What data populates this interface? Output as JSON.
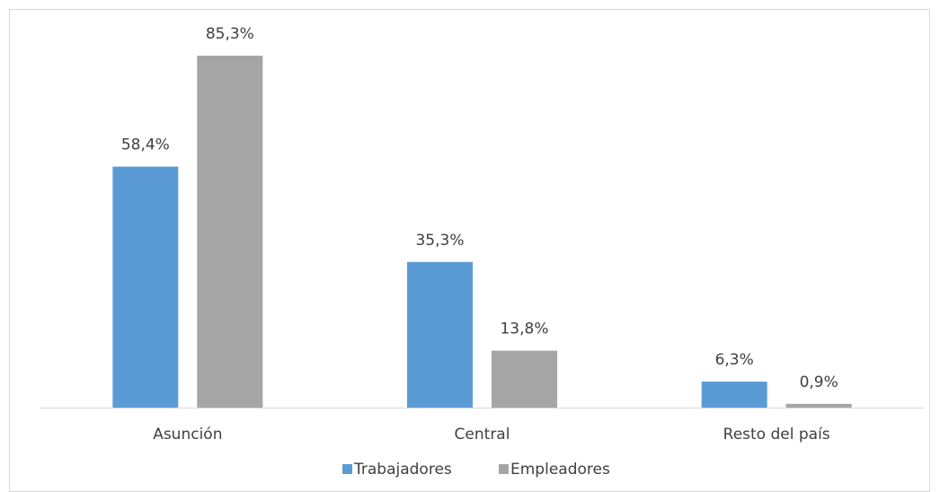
{
  "chart_data": {
    "type": "bar",
    "categories": [
      "Asunción",
      "Central",
      "Resto del país"
    ],
    "series": [
      {
        "name": "Trabajadores",
        "color": "#5b9bd5",
        "values": [
          58.4,
          35.3,
          6.3
        ],
        "value_labels": [
          "58,4%",
          "35,3%",
          "6,3%"
        ]
      },
      {
        "name": "Empleadores",
        "color": "#a5a5a5",
        "values": [
          85.3,
          13.8,
          0.9
        ],
        "value_labels": [
          "85,3%",
          "13,8%",
          "0,9%"
        ]
      }
    ],
    "legend": "bottom"
  }
}
